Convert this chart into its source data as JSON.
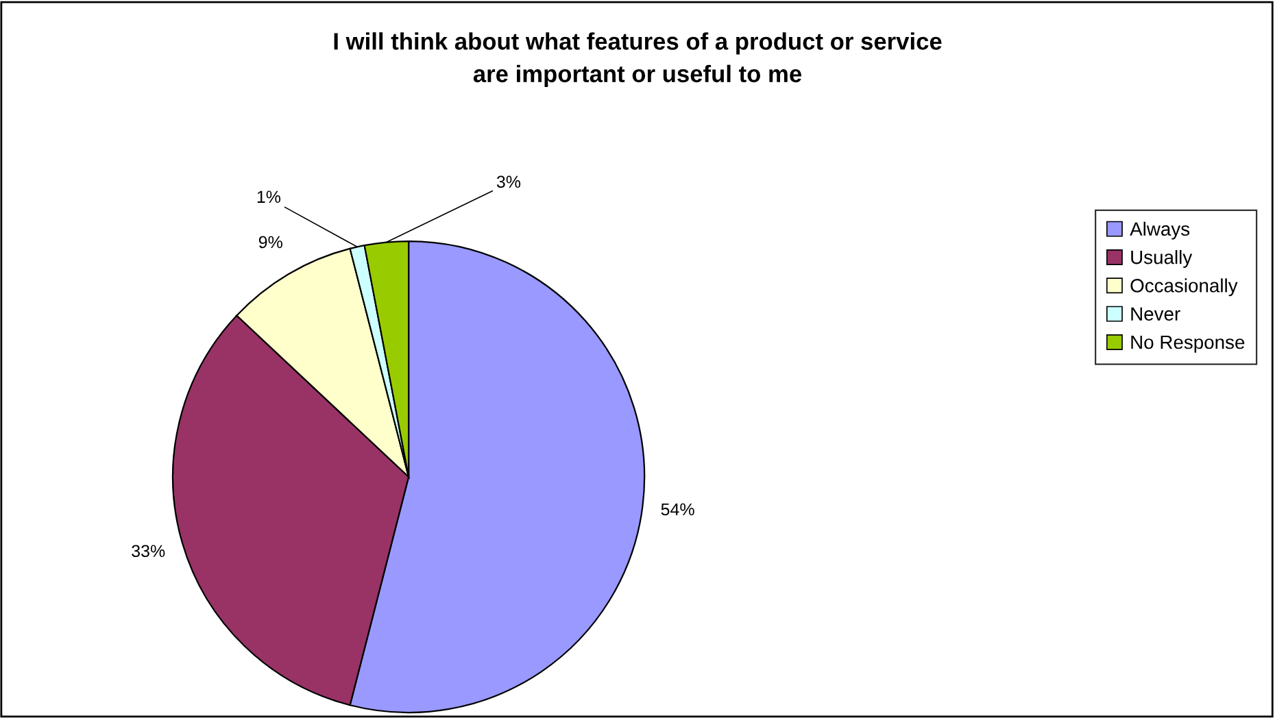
{
  "chart_data": {
    "type": "pie",
    "title": "I will think about what features of a product or service\nare important or useful to me",
    "categories": [
      "Always",
      "Usually",
      "Occasionally",
      "Never",
      "No Response"
    ],
    "values": [
      54,
      33,
      9,
      1,
      3
    ],
    "colors": [
      "#9999ff",
      "#993366",
      "#ffffcc",
      "#ccffff",
      "#99cc00"
    ],
    "value_labels": [
      "54%",
      "33%",
      "9%",
      "1%",
      "3%"
    ],
    "legend": "right"
  }
}
